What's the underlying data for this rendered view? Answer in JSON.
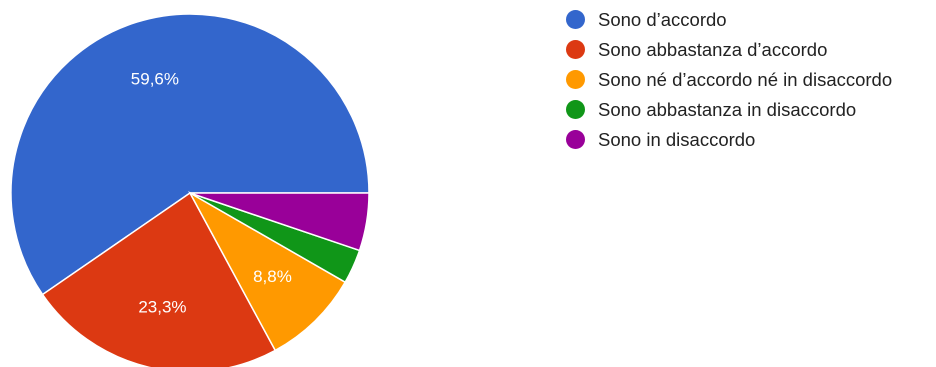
{
  "chart_data": {
    "type": "pie",
    "categories": [
      "Sono d’accordo",
      "Sono abbastanza d’accordo",
      "Sono né d’accordo né in disaccordo",
      "Sono abbastanza in disaccordo",
      "Sono in disaccordo"
    ],
    "values": [
      59.6,
      23.3,
      8.8,
      3.1,
      5.2
    ],
    "labels": [
      "59,6%",
      "23,3%",
      "8,8%",
      "",
      ""
    ],
    "colors": [
      "#3366cc",
      "#dc3912",
      "#ff9900",
      "#109618",
      "#990099"
    ],
    "legend_position": "right"
  }
}
